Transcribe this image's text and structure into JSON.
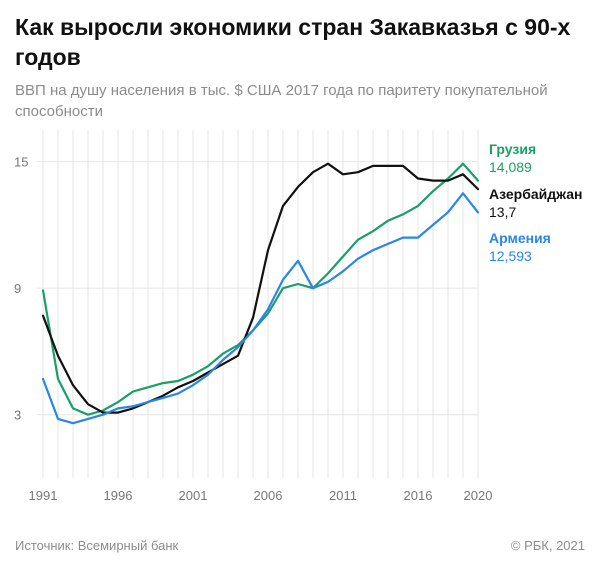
{
  "header": {
    "title": "Как выросли экономики стран Закавказья с 90-х годов",
    "subtitle": "ВВП на душу населения в тыс. $ США 2017 года по паритету покупательной способности"
  },
  "footer": {
    "source": "Источник: Всемирный банк",
    "copyright": "© РБК, 2021"
  },
  "chart_data": {
    "type": "line",
    "x": [
      1991,
      1992,
      1993,
      1994,
      1995,
      1996,
      1997,
      1998,
      1999,
      2000,
      2001,
      2002,
      2003,
      2004,
      2005,
      2006,
      2007,
      2008,
      2009,
      2010,
      2011,
      2012,
      2013,
      2014,
      2015,
      2016,
      2017,
      2018,
      2019,
      2020
    ],
    "xticks": [
      "1991",
      "1996",
      "2001",
      "2006",
      "2011",
      "2016",
      "2020"
    ],
    "yticks": [
      "3",
      "9",
      "15"
    ],
    "ylim": [
      0,
      16.5
    ],
    "grid": true,
    "series": [
      {
        "name": "Грузия",
        "value_label": "14,089",
        "color": "#1a9e6a",
        "values": [
          8.9,
          4.7,
          3.3,
          3.0,
          3.2,
          3.6,
          4.1,
          4.3,
          4.5,
          4.6,
          4.9,
          5.3,
          5.9,
          6.3,
          7.0,
          7.8,
          9.0,
          9.2,
          9.0,
          9.7,
          10.5,
          11.3,
          11.7,
          12.2,
          12.5,
          12.9,
          13.6,
          14.2,
          14.9,
          14.1
        ]
      },
      {
        "name": "Азербайджан",
        "value_label": "13,7",
        "color": "#111111",
        "values": [
          7.7,
          5.8,
          4.4,
          3.5,
          3.1,
          3.1,
          3.3,
          3.6,
          3.9,
          4.3,
          4.6,
          5.0,
          5.4,
          5.8,
          7.6,
          10.8,
          12.9,
          13.8,
          14.5,
          14.9,
          14.4,
          14.5,
          14.8,
          14.8,
          14.8,
          14.2,
          14.1,
          14.1,
          14.4,
          13.7
        ]
      },
      {
        "name": "Армения",
        "value_label": "12,593",
        "color": "#2b86e5",
        "values": [
          4.7,
          2.8,
          2.6,
          2.8,
          3.0,
          3.3,
          3.4,
          3.6,
          3.8,
          4.0,
          4.4,
          4.9,
          5.6,
          6.2,
          7.0,
          8.0,
          9.4,
          10.3,
          9.0,
          9.3,
          9.8,
          10.4,
          10.8,
          11.1,
          11.4,
          11.4,
          12.0,
          12.6,
          13.5,
          12.593
        ]
      }
    ]
  }
}
